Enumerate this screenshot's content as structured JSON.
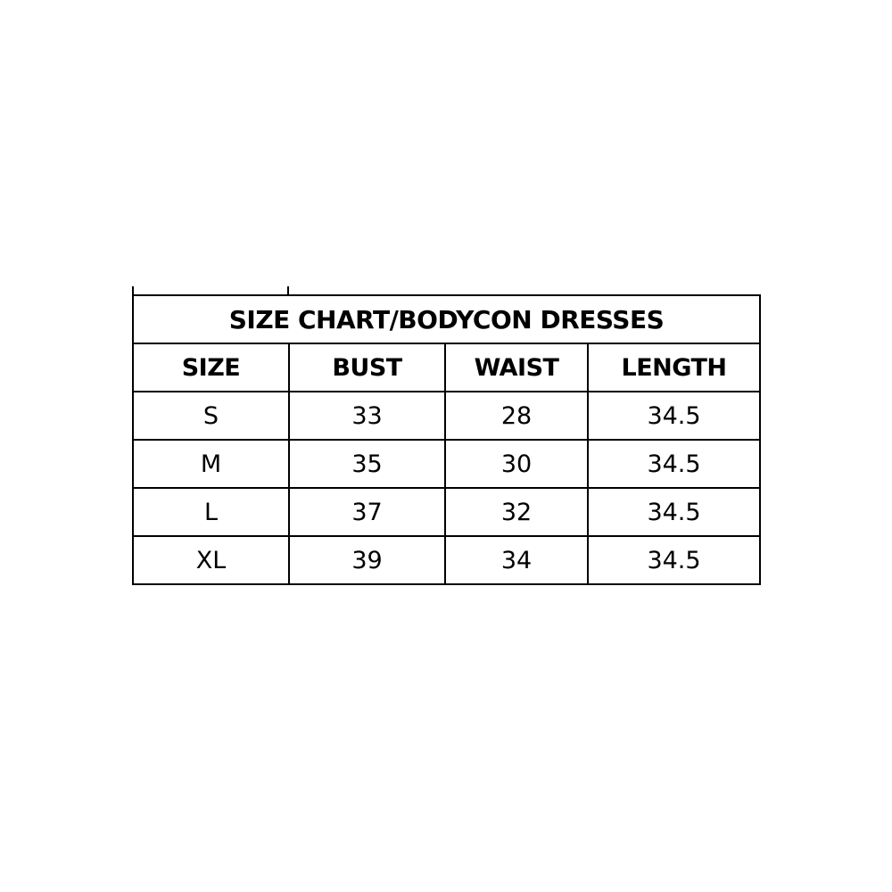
{
  "title": "SIZE CHART/BODYCON DRESSES",
  "columns": [
    "SIZE",
    "BUST",
    "WAIST",
    "LENGTH"
  ],
  "rows": [
    [
      "S",
      "33",
      "28",
      "34.5"
    ],
    [
      "M",
      "35",
      "30",
      "34.5"
    ],
    [
      "L",
      "37",
      "32",
      "34.5"
    ],
    [
      "XL",
      "39",
      "34",
      "34.5"
    ]
  ]
}
